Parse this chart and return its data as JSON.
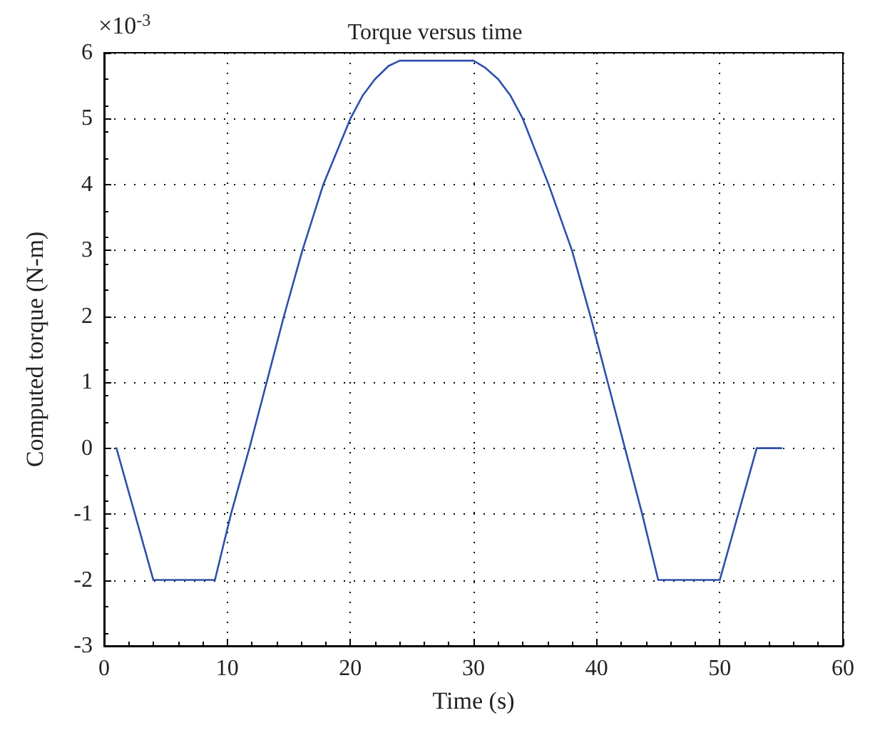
{
  "chart_data": {
    "type": "line",
    "title": "Torque versus time",
    "xlabel": "Time (s)",
    "ylabel": "Computed torque (N-m)",
    "annotations": [
      "×10$^{-3}$"
    ],
    "series": [
      {
        "color": "#2e4fad",
        "x": [
          1,
          4,
          9,
          10.3,
          11.8,
          13.2,
          14.6,
          16.1,
          17.8,
          20,
          21,
          22,
          23.1,
          24,
          30,
          30.9,
          32,
          33,
          34,
          36.1,
          38,
          39.5,
          40.9,
          42.3,
          43.7,
          45,
          50,
          53,
          55
        ],
        "values": [
          0,
          -2,
          -2,
          -1,
          0,
          1,
          2,
          3,
          4,
          5,
          5.35,
          5.6,
          5.8,
          5.88,
          5.88,
          5.78,
          5.6,
          5.35,
          5,
          4,
          3,
          2,
          1,
          0,
          -1,
          -2,
          -2,
          0,
          0
        ]
      }
    ],
    "xlim": [
      0,
      60
    ],
    "xticks": [
      0,
      10,
      20,
      30,
      40,
      50,
      60
    ],
    "ylim": [
      -3,
      6
    ],
    "yticks": [
      -3,
      -2,
      -1,
      0,
      1,
      2,
      3,
      4,
      5,
      6
    ],
    "grid": true,
    "marker": "none",
    "line_style": "solid"
  }
}
